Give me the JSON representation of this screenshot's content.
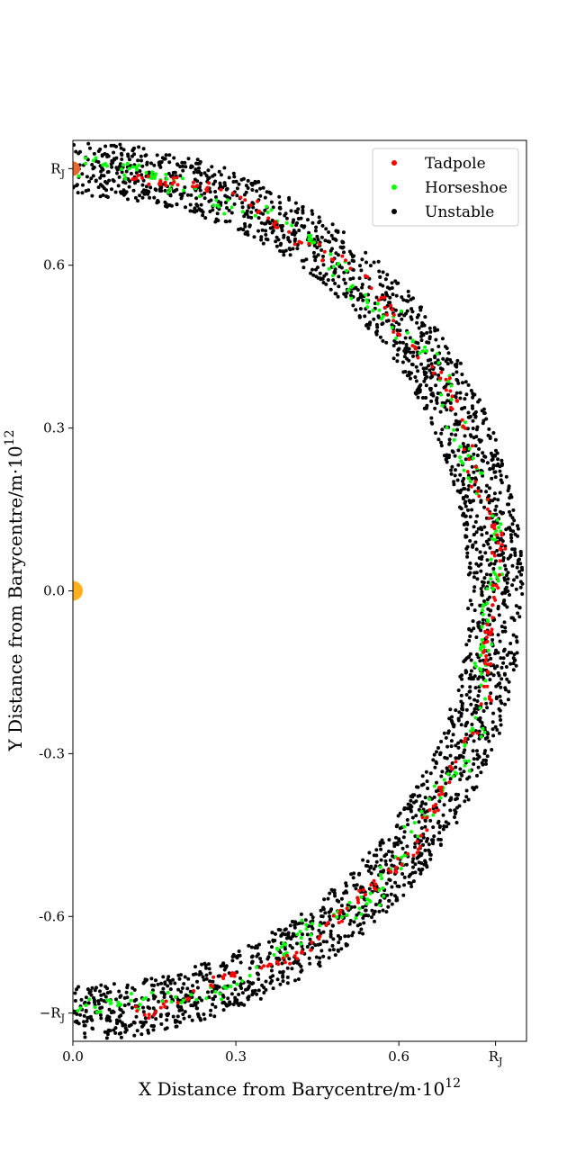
{
  "chart_data": {
    "type": "scatter",
    "xlabel": "X Distance from Barycentre/m·10",
    "xlabel_exp": "12",
    "ylabel": "Y Distance from Barycentre/m·10",
    "ylabel_exp": "12",
    "xlim": [
      0.0,
      0.835
    ],
    "ylim": [
      -0.83,
      0.83
    ],
    "x_ticks": [
      {
        "value": 0.0,
        "label": "0.0"
      },
      {
        "value": 0.3,
        "label": "0.3"
      },
      {
        "value": 0.6,
        "label": "0.6"
      },
      {
        "value": 0.778,
        "label": "R",
        "sub": "J"
      }
    ],
    "y_ticks": [
      {
        "value": 0.778,
        "label": "R",
        "sub": "J"
      },
      {
        "value": 0.6,
        "label": "0.6"
      },
      {
        "value": 0.3,
        "label": "0.3"
      },
      {
        "value": 0.0,
        "label": "0.0"
      },
      {
        "value": -0.3,
        "label": "-0.3"
      },
      {
        "value": -0.6,
        "label": "-0.6"
      },
      {
        "value": -0.778,
        "label": "−R",
        "sub": "J"
      }
    ],
    "grid": false,
    "legend_position": "top-right",
    "radius_RJ": 0.778,
    "bodies": [
      {
        "name": "sun",
        "x": 0.0,
        "y": 0.0,
        "color": "#ffb01f"
      },
      {
        "name": "jupiter",
        "x": 0.0,
        "y": 0.778,
        "color": "#e8672d"
      }
    ],
    "series": [
      {
        "name": "Tadpole",
        "color": "#ff0000",
        "radial_spread": 0.006,
        "count": 260
      },
      {
        "name": "Horseshoe",
        "color": "#00ff00",
        "radial_spread": 0.009,
        "count": 300
      },
      {
        "name": "Unstable",
        "color": "#000000",
        "radial_spread": 0.05,
        "count": 2600
      }
    ]
  }
}
